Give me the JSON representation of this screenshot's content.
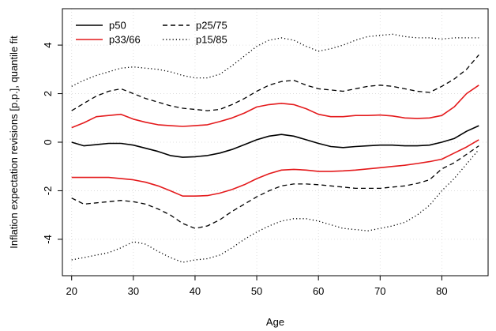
{
  "chart_data": {
    "type": "line",
    "title": "",
    "xlabel": "Age",
    "ylabel": "Inflation expectation revisions [p.p.], quantile fit",
    "xlim": [
      18.5,
      87.5
    ],
    "ylim": [
      -5.5,
      5.5
    ],
    "xticks": [
      20,
      30,
      40,
      50,
      60,
      70,
      80
    ],
    "yticks": [
      -4,
      -2,
      0,
      2,
      4
    ],
    "grid": true,
    "legend_position": "top-left",
    "legend_columns": 2,
    "x": [
      20,
      22,
      24,
      26,
      28,
      30,
      32,
      34,
      36,
      38,
      40,
      42,
      44,
      46,
      48,
      50,
      52,
      54,
      56,
      58,
      60,
      62,
      64,
      66,
      68,
      70,
      72,
      74,
      76,
      78,
      80,
      82,
      84,
      86
    ],
    "series": [
      {
        "name": "p50",
        "color": "#000000",
        "dash": "solid",
        "values": [
          0.0,
          -0.15,
          -0.1,
          -0.05,
          -0.05,
          -0.12,
          -0.25,
          -0.38,
          -0.55,
          -0.62,
          -0.6,
          -0.55,
          -0.45,
          -0.3,
          -0.1,
          0.1,
          0.25,
          0.32,
          0.25,
          0.1,
          -0.05,
          -0.18,
          -0.22,
          -0.18,
          -0.15,
          -0.12,
          -0.12,
          -0.15,
          -0.15,
          -0.12,
          0.0,
          0.15,
          0.45,
          0.68
        ]
      },
      {
        "name": "p33/66",
        "color": "#e41a1c",
        "dash": "solid",
        "values": [
          0.6,
          0.8,
          1.05,
          1.1,
          1.15,
          0.95,
          0.82,
          0.72,
          0.68,
          0.65,
          0.68,
          0.72,
          0.85,
          1.0,
          1.2,
          1.45,
          1.55,
          1.6,
          1.55,
          1.38,
          1.15,
          1.05,
          1.05,
          1.1,
          1.1,
          1.12,
          1.08,
          1.0,
          0.98,
          1.0,
          1.1,
          1.45,
          2.0,
          2.35
        ]
      },
      {
        "name": "p33/66 lower",
        "color": "#e41a1c",
        "dash": "solid",
        "values": [
          -1.45,
          -1.45,
          -1.45,
          -1.45,
          -1.5,
          -1.55,
          -1.65,
          -1.8,
          -2.0,
          -2.22,
          -2.22,
          -2.2,
          -2.1,
          -1.95,
          -1.75,
          -1.5,
          -1.3,
          -1.15,
          -1.12,
          -1.15,
          -1.2,
          -1.2,
          -1.18,
          -1.15,
          -1.1,
          -1.05,
          -1.0,
          -0.95,
          -0.88,
          -0.8,
          -0.7,
          -0.45,
          -0.2,
          0.1
        ]
      },
      {
        "name": "p25/75",
        "color": "#000000",
        "dash": "dashed",
        "values": [
          1.3,
          1.6,
          1.9,
          2.1,
          2.2,
          2.0,
          1.8,
          1.65,
          1.5,
          1.4,
          1.35,
          1.3,
          1.35,
          1.55,
          1.8,
          2.1,
          2.35,
          2.5,
          2.55,
          2.35,
          2.2,
          2.15,
          2.1,
          2.2,
          2.3,
          2.35,
          2.3,
          2.2,
          2.1,
          2.05,
          2.3,
          2.6,
          3.0,
          3.6
        ]
      },
      {
        "name": "p25/75 lower",
        "color": "#000000",
        "dash": "dashed",
        "values": [
          -2.3,
          -2.55,
          -2.5,
          -2.45,
          -2.4,
          -2.45,
          -2.55,
          -2.75,
          -3.0,
          -3.35,
          -3.55,
          -3.45,
          -3.2,
          -2.85,
          -2.55,
          -2.25,
          -2.0,
          -1.8,
          -1.72,
          -1.72,
          -1.75,
          -1.8,
          -1.85,
          -1.9,
          -1.9,
          -1.9,
          -1.85,
          -1.8,
          -1.7,
          -1.55,
          -1.1,
          -0.85,
          -0.5,
          -0.15
        ]
      },
      {
        "name": "p15/85",
        "color": "#000000",
        "dash": "dotted",
        "values": [
          2.3,
          2.55,
          2.75,
          2.9,
          3.05,
          3.1,
          3.05,
          3.0,
          2.9,
          2.75,
          2.65,
          2.65,
          2.8,
          3.15,
          3.55,
          3.95,
          4.2,
          4.3,
          4.2,
          3.95,
          3.75,
          3.85,
          4.0,
          4.2,
          4.35,
          4.4,
          4.45,
          4.35,
          4.3,
          4.3,
          4.25,
          4.3,
          4.3,
          4.3
        ]
      },
      {
        "name": "p15/85 lower",
        "color": "#000000",
        "dash": "dotted",
        "values": [
          -4.85,
          -4.75,
          -4.65,
          -4.55,
          -4.35,
          -4.1,
          -4.2,
          -4.5,
          -4.75,
          -4.95,
          -4.85,
          -4.8,
          -4.65,
          -4.35,
          -4.0,
          -3.7,
          -3.45,
          -3.25,
          -3.15,
          -3.15,
          -3.25,
          -3.4,
          -3.55,
          -3.6,
          -3.65,
          -3.55,
          -3.45,
          -3.3,
          -3.0,
          -2.6,
          -2.0,
          -1.5,
          -0.9,
          -0.3
        ]
      }
    ],
    "legend": [
      {
        "label": "p50",
        "color": "#000000",
        "dash": "solid"
      },
      {
        "label": "p33/66",
        "color": "#e41a1c",
        "dash": "solid"
      },
      {
        "label": "p25/75",
        "color": "#000000",
        "dash": "dashed"
      },
      {
        "label": "p15/85",
        "color": "#000000",
        "dash": "dotted"
      }
    ]
  }
}
